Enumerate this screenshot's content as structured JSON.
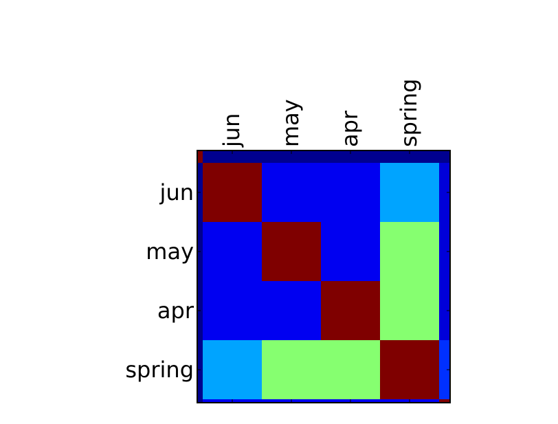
{
  "chart_data": {
    "type": "heatmap",
    "title": "",
    "xlabel": "",
    "ylabel": "",
    "x_ticks": [
      "jun",
      "may",
      "apr",
      "spring"
    ],
    "y_ticks": [
      "jun",
      "may",
      "apr",
      "spring"
    ],
    "colormap": "jet",
    "x_tick_position": "top",
    "x_tick_rotation": 90,
    "grid": false,
    "legend": "none",
    "cell_colors": [
      [
        "#7f0000",
        "#0000f1",
        "#0000f1",
        "#00a4ff"
      ],
      [
        "#0000f1",
        "#7f0000",
        "#0000f1",
        "#86ff70"
      ],
      [
        "#0000f1",
        "#0000f1",
        "#7f0000",
        "#86ff70"
      ],
      [
        "#00a4ff",
        "#86ff70",
        "#86ff70",
        "#7f0000"
      ]
    ],
    "edge_colors": {
      "top_strip": "#00008f",
      "top_left_corner": "#7f0000",
      "left_strip": "#00008f",
      "right_strip": "#0000d9",
      "right_strip_bottom": "#0030ff",
      "bottom_strip": "#0000f1",
      "bottom_left_corner": "#00008f",
      "bottom_right_corner": "#7f0000",
      "top_right_corner": "#00008f"
    }
  }
}
